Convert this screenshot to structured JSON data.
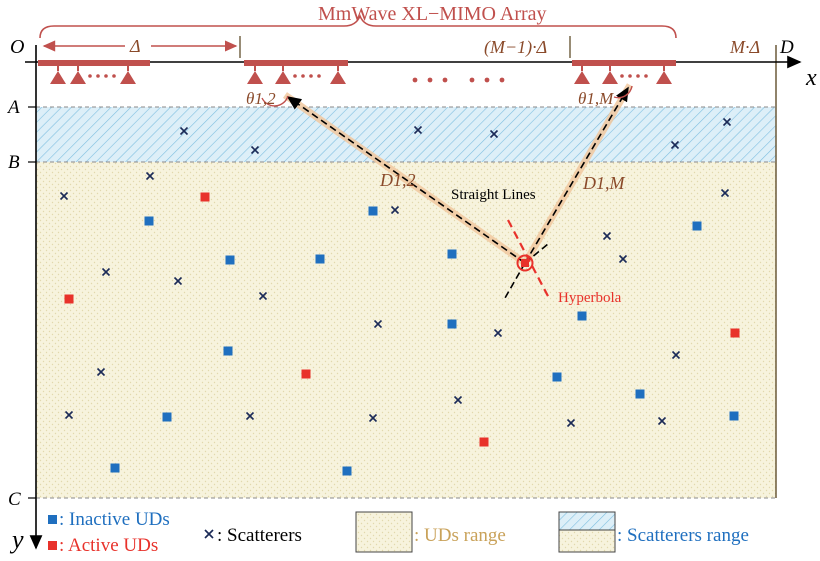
{
  "title": "MmWave XL−MIMO Array",
  "axis_labels": {
    "origin": "O",
    "x": "x",
    "y": "y",
    "A": "A",
    "B": "B",
    "C": "C",
    "D": "D"
  },
  "array_labels": {
    "delta": "Δ",
    "m_minus_1": "(M−1)·Δ",
    "m": "M·Δ"
  },
  "angle_labels": {
    "theta12": "θ1,2",
    "theta1M": "θ1,M"
  },
  "distance_labels": {
    "d12": "D1,2",
    "d1M": "D1,M"
  },
  "annotations": {
    "straight_lines": "Straight Lines",
    "hyperbola": "Hyperbola"
  },
  "legend": {
    "inactive": ": Inactive UDs",
    "active": ":  Active UDs",
    "scatterers": ": Scatterers",
    "uds_range": ": UDs range",
    "scatterers_range": ": Scatterers range"
  },
  "colors": {
    "array": "#c0504d",
    "inactive_ud": "#1f6fbf",
    "active_ud": "#e8322b",
    "scatterer": "#1b2a57",
    "uds_fill": "#f6f2dc",
    "scatter_fill": "#d7ecf7",
    "label_brown": "#8a4a2a",
    "hyperbola": "#e8322b",
    "legend_uds_text": "#c9a25a",
    "legend_scatter_text": "#1f6fbf"
  },
  "icons": {
    "inactive": "blue-square-icon",
    "active": "red-square-icon",
    "scatterer": "cross-icon",
    "array_element": "antenna-triangle-icon"
  }
}
